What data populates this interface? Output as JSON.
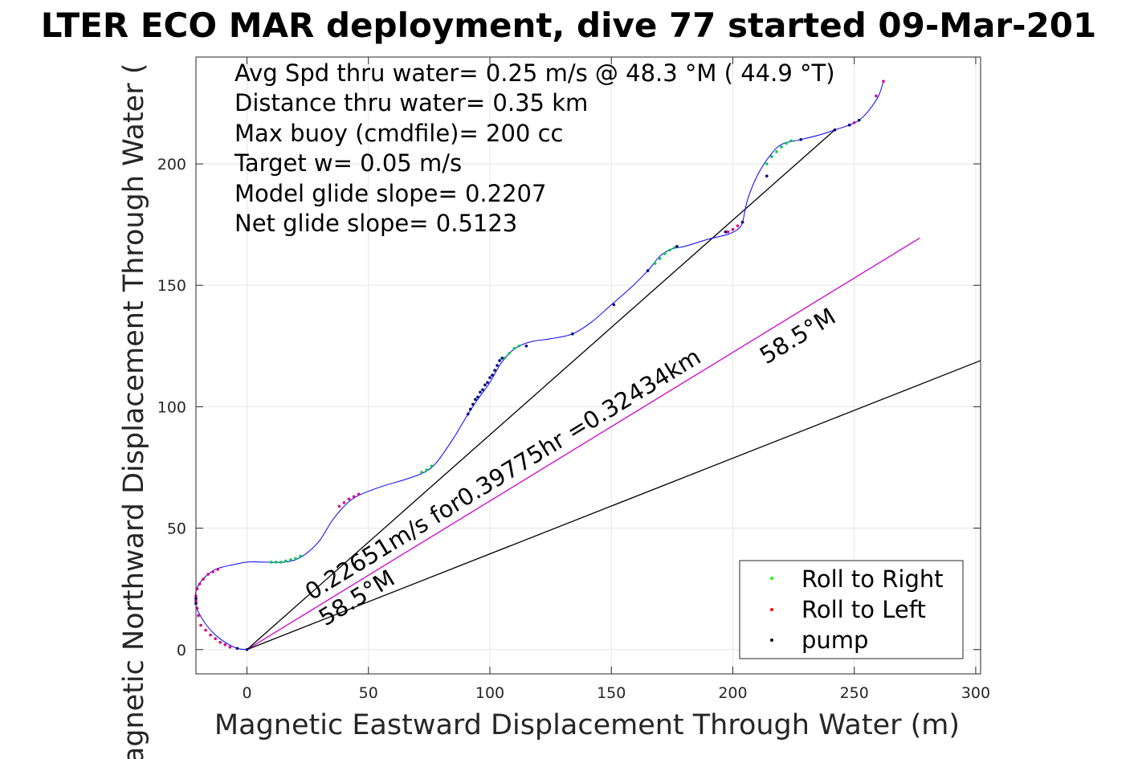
{
  "chart_data": {
    "type": "line",
    "title": "LTER ECO MAR deployment, dive 77 started 09-Mar-201",
    "xlabel": "Magnetic Eastward Displacement Through Water (m)",
    "ylabel": "Magnetic Northward Displacement Through Water (",
    "xlim": [
      -21,
      302
    ],
    "ylim": [
      -10,
      244
    ],
    "xticks": [
      0,
      50,
      100,
      150,
      200,
      250,
      300
    ],
    "yticks": [
      0,
      50,
      100,
      150,
      200
    ],
    "grid": true,
    "legend_position": "bottom-right",
    "annotations": [
      "Avg Spd thru water=  0.25 m/s @  48.3 °M ( 44.9 °T)",
      "Distance thru water=  0.35 km",
      "Max buoy (cmdfile)= 200 cc",
      "Target w= 0.05 m/s",
      "Model glide slope= 0.2207",
      "Net glide slope= 0.5123"
    ],
    "line_labels": {
      "current": "0.22651m/s for0.39775hr =0.32434km",
      "heading_upper": "58.5°M",
      "heading_lower": "58.5°M"
    },
    "series": [
      {
        "name": "track",
        "color": "#0000ff",
        "x": [
          0,
          -4,
          -9,
          -14,
          -18,
          -21,
          -21,
          -19,
          -16,
          -13,
          -10,
          0,
          8,
          15,
          20,
          25,
          30,
          35,
          40,
          45,
          55,
          65,
          73,
          78,
          85,
          91,
          95,
          100,
          104,
          108,
          112,
          118,
          125,
          134,
          142,
          150,
          158,
          165,
          170,
          175,
          180,
          190,
          198,
          202,
          204,
          206,
          210,
          215,
          220,
          228,
          236,
          242,
          248,
          252,
          256,
          260,
          262
        ],
        "y": [
          0,
          0.5,
          3,
          7,
          12,
          18,
          24,
          28,
          31,
          33,
          34,
          36,
          36,
          36,
          37,
          40,
          45,
          53,
          59,
          63,
          67,
          70,
          73,
          77,
          87,
          97,
          103,
          110,
          117,
          122,
          125,
          127,
          128,
          130,
          135,
          142,
          149,
          156,
          162,
          165,
          166,
          169,
          171,
          173,
          176,
          185,
          195,
          203,
          208,
          210,
          212,
          214,
          216,
          218,
          222,
          228,
          234
        ]
      }
    ],
    "straight_lines": [
      {
        "name": "net displacement",
        "color": "#000000",
        "x": [
          0,
          242
        ],
        "y": [
          0,
          214
        ]
      },
      {
        "name": "current",
        "color": "#cc00cc",
        "x": [
          0,
          277
        ],
        "y": [
          0,
          169.5
        ]
      },
      {
        "name": "heading",
        "color": "#000000",
        "x": [
          0,
          302
        ],
        "y": [
          0,
          119
        ]
      }
    ],
    "legend": [
      {
        "label": "Roll to Right",
        "color": "#00ff00"
      },
      {
        "label": "Roll to Left",
        "color": "#ff0000"
      },
      {
        "label": "pump",
        "color": "#000000"
      }
    ],
    "markers": {
      "green": [
        [
          10,
          36
        ],
        [
          12,
          36
        ],
        [
          14,
          36
        ],
        [
          16,
          36.5
        ],
        [
          18,
          37
        ],
        [
          20,
          37.5
        ],
        [
          22,
          38.5
        ],
        [
          72,
          73
        ],
        [
          74,
          74
        ],
        [
          76,
          75.5
        ],
        [
          106,
          120
        ],
        [
          108,
          122
        ],
        [
          110,
          124
        ],
        [
          112,
          125
        ],
        [
          168,
          159
        ],
        [
          170,
          161
        ],
        [
          172,
          163
        ],
        [
          174,
          164.5
        ],
        [
          176,
          165.5
        ],
        [
          214,
          200
        ],
        [
          216,
          203
        ],
        [
          218,
          205
        ],
        [
          220,
          207
        ],
        [
          222,
          208.5
        ],
        [
          224,
          209.5
        ]
      ],
      "red": [
        [
          -20,
          14
        ],
        [
          -20.5,
          17
        ],
        [
          -21,
          20
        ],
        [
          -21,
          22
        ],
        [
          -20.5,
          25
        ],
        [
          -19.5,
          27
        ],
        [
          -18,
          29
        ],
        [
          -16,
          31
        ],
        [
          -14,
          32
        ],
        [
          -12,
          33
        ],
        [
          -19,
          10
        ],
        [
          -17,
          8
        ],
        [
          -15,
          6
        ],
        [
          -13,
          4.5
        ],
        [
          -11,
          3
        ],
        [
          -9,
          2
        ],
        [
          -7,
          1
        ],
        [
          38,
          59
        ],
        [
          40,
          60.5
        ],
        [
          42,
          62
        ],
        [
          44,
          63
        ],
        [
          46,
          64
        ],
        [
          198,
          172
        ],
        [
          200,
          173
        ],
        [
          202,
          174.5
        ],
        [
          248,
          216
        ],
        [
          250,
          217
        ],
        [
          259,
          228
        ],
        [
          262,
          234
        ]
      ],
      "black": [
        [
          0,
          0
        ],
        [
          -4,
          0.5
        ],
        [
          -21,
          19
        ],
        [
          -21,
          21
        ],
        [
          91,
          97
        ],
        [
          92,
          99
        ],
        [
          93,
          101
        ],
        [
          94,
          103
        ],
        [
          95,
          104
        ],
        [
          96,
          106
        ],
        [
          97,
          107
        ],
        [
          98,
          109
        ],
        [
          99,
          110
        ],
        [
          100,
          112
        ],
        [
          101,
          113
        ],
        [
          102,
          115
        ],
        [
          103,
          117
        ],
        [
          104,
          119
        ],
        [
          105,
          120
        ],
        [
          115,
          125
        ],
        [
          134,
          130
        ],
        [
          151,
          142
        ],
        [
          165,
          156
        ],
        [
          177,
          166
        ],
        [
          197,
          172
        ],
        [
          204,
          176
        ],
        [
          214,
          195
        ],
        [
          228,
          210
        ],
        [
          242,
          214
        ],
        [
          248,
          216
        ],
        [
          252,
          218
        ]
      ]
    }
  }
}
